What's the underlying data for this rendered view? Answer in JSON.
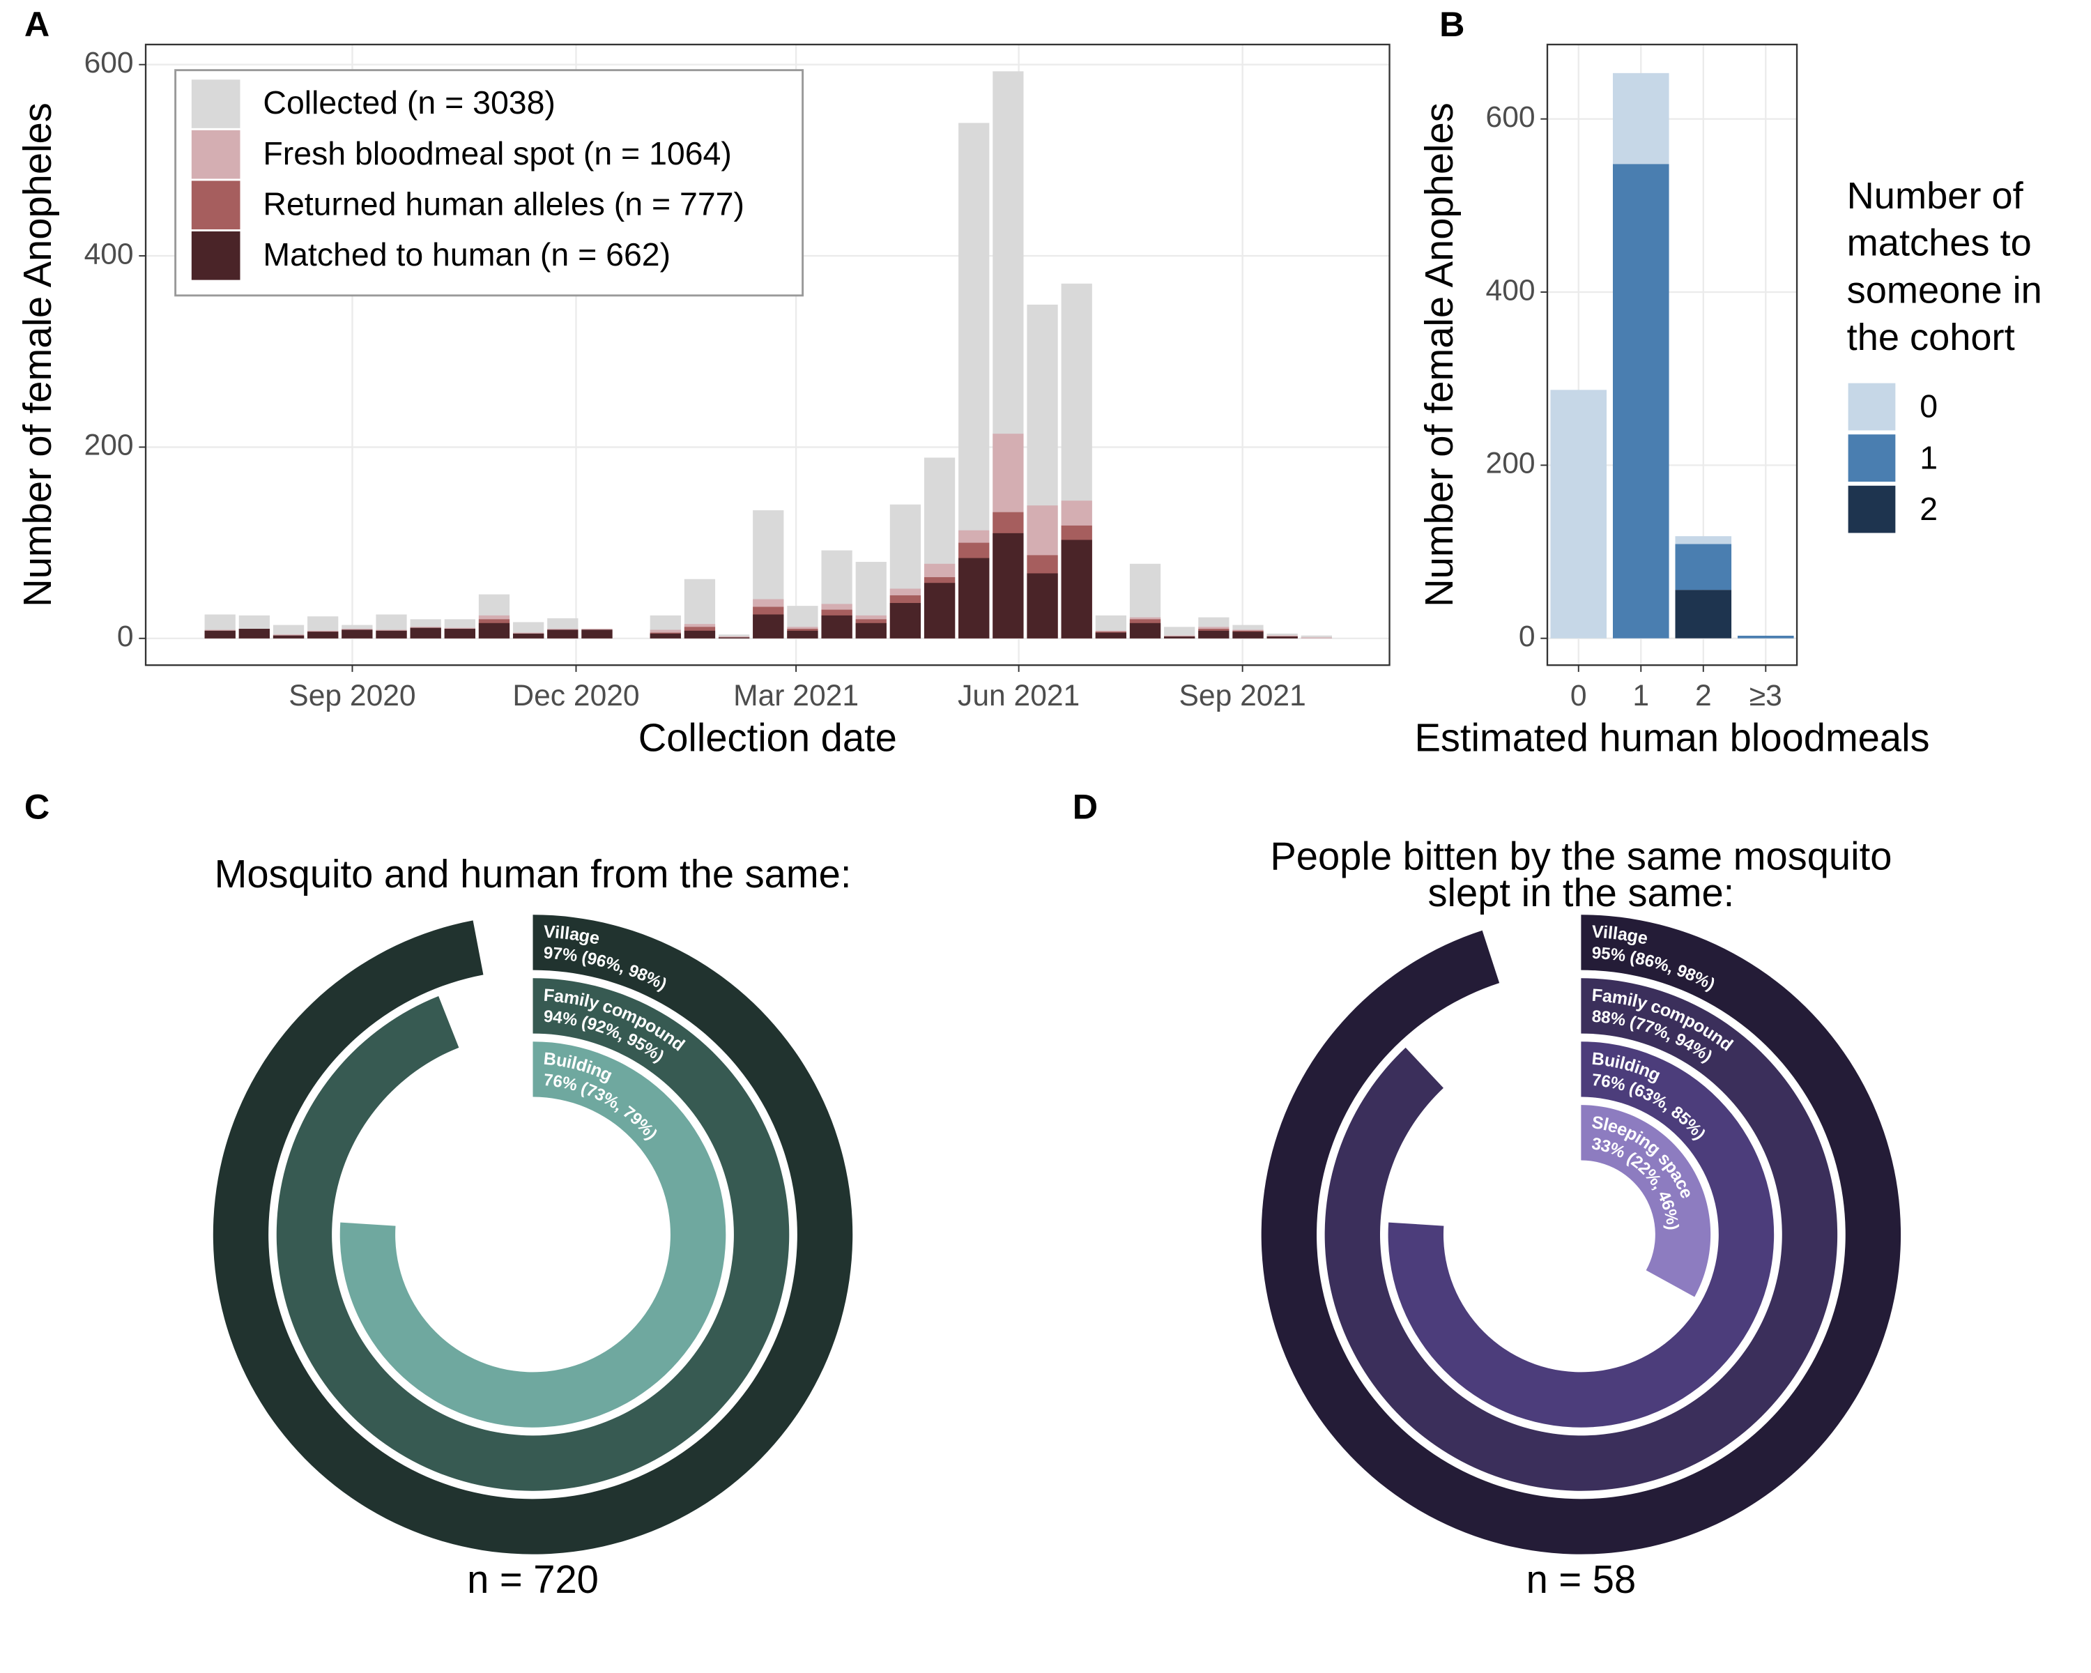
{
  "chart_data": [
    {
      "type": "bar",
      "barmode": "overlay",
      "panel_label": "A",
      "xlabel": "Collection date",
      "ylabel": "Number of female Anopheles",
      "categories": [
        null,
        null,
        null,
        null,
        null,
        null,
        null,
        null,
        null,
        null,
        null,
        null,
        null,
        null,
        null,
        null,
        null,
        null,
        null,
        null,
        null,
        null,
        null,
        null,
        null,
        null,
        null,
        null,
        null,
        null,
        null,
        null,
        null
      ],
      "xlim": [
        -2.17,
        34.13
      ],
      "xticks": [
        {
          "value": 3.86,
          "label": "Sep 2020"
        },
        {
          "value": 10.39,
          "label": "Dec 2020"
        },
        {
          "value": 16.81,
          "label": "Mar 2021"
        },
        {
          "value": 23.31,
          "label": "Jun 2021"
        },
        {
          "value": 29.84,
          "label": "Sep 2021"
        }
      ],
      "ylim": [
        -28,
        621
      ],
      "yticks": [
        0,
        200,
        400,
        600
      ],
      "grid": true,
      "series": [
        {
          "name": "Collected (n = 3038)",
          "color": "#d9d9d9",
          "values": [
            25,
            24,
            14,
            23,
            14,
            25,
            20,
            20,
            46,
            17,
            21,
            10,
            null,
            24,
            62,
            4,
            134,
            34,
            92,
            80,
            140,
            189,
            539,
            593,
            349,
            371,
            24,
            78,
            12,
            22,
            14,
            5,
            3
          ]
        },
        {
          "name": "Fresh bloodmeal spot (n = 1064)",
          "color": "#d4aeb2",
          "values": [
            9,
            10,
            4,
            8,
            10,
            9,
            12,
            11,
            24,
            6,
            10,
            10,
            null,
            9,
            15,
            2,
            41,
            12,
            36,
            24,
            52,
            78,
            113,
            214,
            139,
            144,
            8,
            22,
            3,
            12,
            9,
            3,
            1
          ]
        },
        {
          "name": "Returned human alleles (n = 777)",
          "color": "#a65e5e",
          "values": [
            8,
            10,
            3,
            7,
            9,
            8,
            11,
            10,
            20,
            5,
            9,
            9,
            null,
            6,
            12,
            1,
            33,
            10,
            30,
            20,
            45,
            64,
            100,
            132,
            87,
            118,
            7,
            20,
            2,
            10,
            8,
            2,
            0
          ]
        },
        {
          "name": "Matched to human (n = 662)",
          "color": "#4a2428",
          "values": [
            8,
            10,
            3,
            7,
            9,
            8,
            11,
            10,
            16,
            5,
            9,
            9,
            null,
            5,
            8,
            1,
            25,
            8,
            24,
            16,
            37,
            58,
            84,
            110,
            68,
            103,
            6,
            16,
            2,
            8,
            7,
            2,
            0
          ]
        }
      ]
    },
    {
      "type": "bar",
      "barmode": "stack",
      "panel_label": "B",
      "xlabel": "Estimated human bloodmeals",
      "ylabel": "Number of female Anopheles",
      "categories": [
        "0",
        "1",
        "2",
        "≥3"
      ],
      "ylim": [
        -31,
        686
      ],
      "yticks": [
        0,
        200,
        400,
        600
      ],
      "grid": true,
      "legend_title": [
        "Number of",
        "matches to",
        "someone in",
        "the cohort"
      ],
      "series": [
        {
          "name": "0",
          "color": "#c6d7e7",
          "values": [
            287,
            105,
            9,
            0
          ]
        },
        {
          "name": "1",
          "color": "#4a7eb0",
          "values": [
            0,
            548,
            53,
            3
          ]
        },
        {
          "name": "2",
          "color": "#1e344f",
          "values": [
            0,
            0,
            56,
            0
          ]
        }
      ]
    },
    {
      "type": "radial",
      "panel_label": "C",
      "title": [
        "Mosquito and human from the same:"
      ],
      "note": "n = 720",
      "rlim": [
        0,
        100
      ],
      "categories": [
        "Village",
        "Family compound",
        "Building"
      ],
      "values": [
        97,
        94,
        76
      ],
      "value_labels": [
        "97% (96%, 98%)",
        "94% (92%, 95%)",
        "76% (73%, 79%)"
      ],
      "colors": [
        "#21332f",
        "#375a52",
        "#6fa89f"
      ]
    },
    {
      "type": "radial",
      "panel_label": "D",
      "title": [
        "People bitten by the same mosquito",
        "slept in the same:"
      ],
      "note": "n = 58",
      "rlim": [
        0,
        100
      ],
      "categories": [
        "Village",
        "Family compound",
        "Building",
        "Sleeping space"
      ],
      "values": [
        95,
        88,
        76,
        33
      ],
      "value_labels": [
        "95% (86%, 98%)",
        "88% (77%, 94%)",
        "76% (63%, 85%)",
        "33% (22%, 46%)"
      ],
      "colors": [
        "#241c37",
        "#3b2f5b",
        "#4c3d7b",
        "#8d7cc0"
      ]
    }
  ]
}
